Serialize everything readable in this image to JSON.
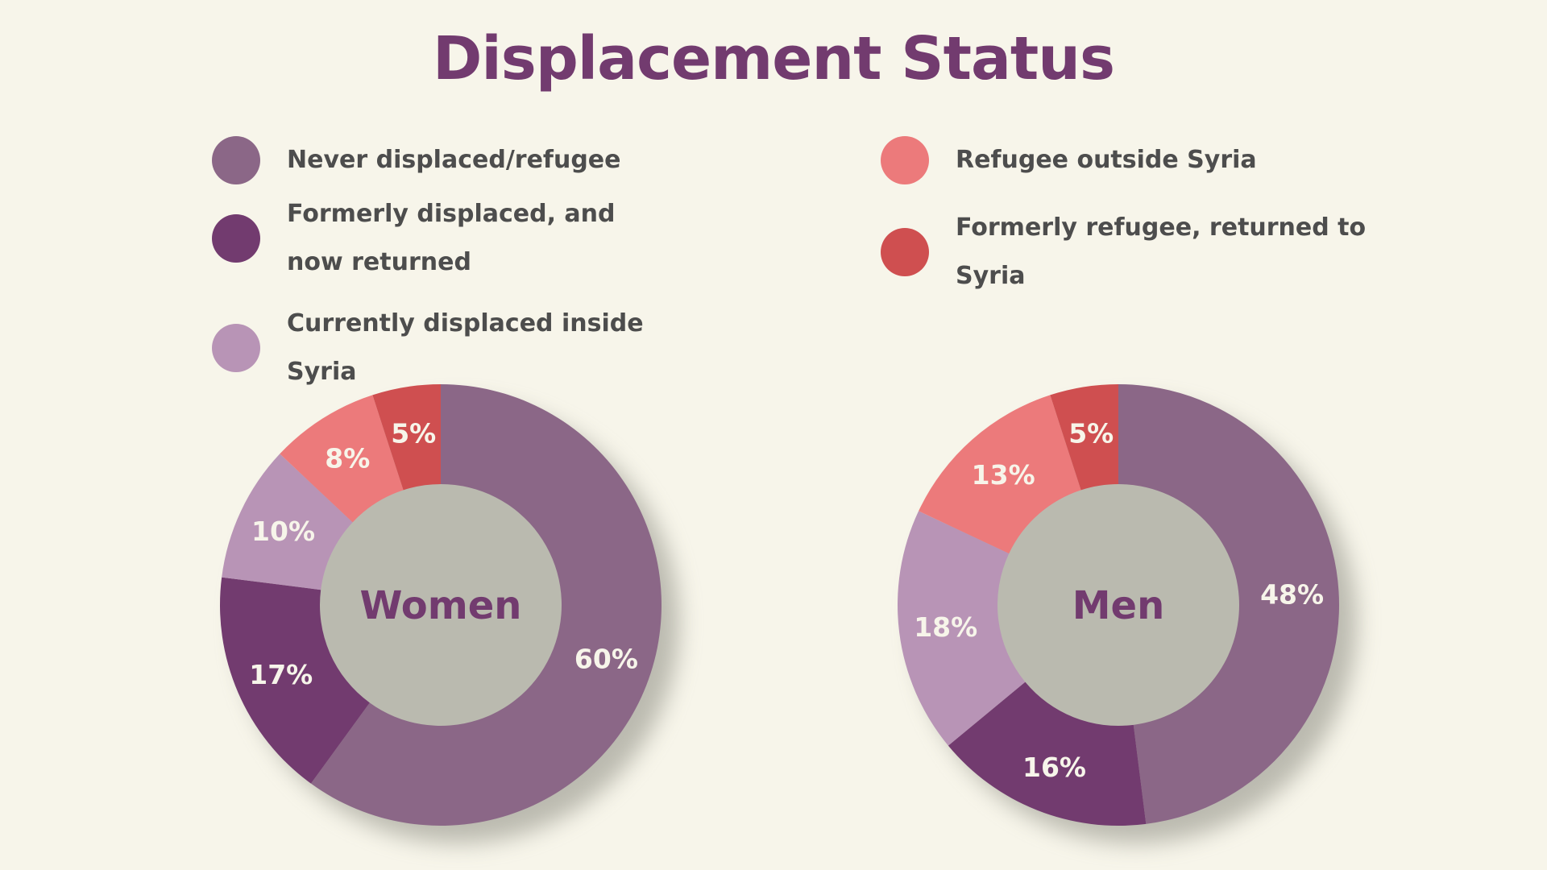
{
  "title": "Displacement Status",
  "legend": [
    {
      "label": "Never displaced/refugee",
      "color": "#8B6787"
    },
    {
      "label": "Formerly displaced, and now returned",
      "color": "#723B6F"
    },
    {
      "label": "Currently displaced inside Syria",
      "color": "#B894B6"
    },
    {
      "label": "Refugee outside Syria",
      "color": "#EC7A7B"
    },
    {
      "label": "Formerly refugee, returned to Syria",
      "color": "#CF4F50"
    }
  ],
  "chart_data": [
    {
      "type": "pie",
      "variant": "donut",
      "center_label": "Women",
      "categories": [
        "Never displaced/refugee",
        "Formerly displaced, and now returned",
        "Currently displaced inside Syria",
        "Refugee outside Syria",
        "Formerly refugee, returned to Syria"
      ],
      "values": [
        60,
        17,
        10,
        8,
        5
      ],
      "labels": [
        "60%",
        "17%",
        "10%",
        "8%",
        "5%"
      ]
    },
    {
      "type": "pie",
      "variant": "donut",
      "center_label": "Men",
      "categories": [
        "Never displaced/refugee",
        "Formerly displaced, and now returned",
        "Currently displaced inside Syria",
        "Refugee outside Syria",
        "Formerly refugee, returned to Syria"
      ],
      "values": [
        48,
        16,
        18,
        13,
        5
      ],
      "labels": [
        "48%",
        "16%",
        "18%",
        "13%",
        "5%"
      ]
    }
  ]
}
